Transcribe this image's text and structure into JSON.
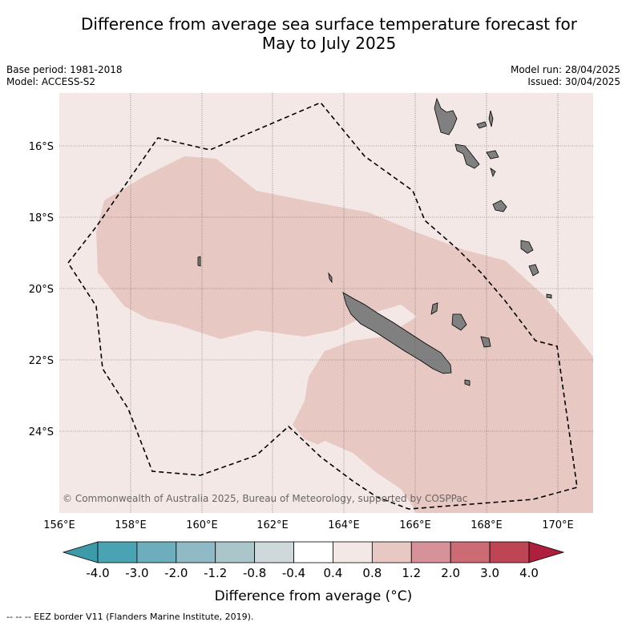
{
  "title_line1": "Difference from average sea surface temperature forecast for",
  "title_line2": "May to July 2025",
  "base_period": "Base period: 1981-2018",
  "model": "Model: ACCESS-S2",
  "model_run": "Model run: 28/04/2025",
  "issued": "Issued: 30/04/2025",
  "copyright": "© Commonwealth of Australia 2025, Bureau of Meteorology, supported by COSPPac",
  "lat_labels": [
    "16°S",
    "18°S",
    "20°S",
    "22°S",
    "24°S"
  ],
  "lon_labels": [
    "156°E",
    "158°E",
    "160°E",
    "162°E",
    "164°E",
    "166°E",
    "168°E",
    "170°E"
  ],
  "colorbar": {
    "ticks": [
      "-4.0",
      "-3.0",
      "-2.0",
      "-1.2",
      "-0.8",
      "-0.4",
      "0.4",
      "0.8",
      "1.2",
      "2.0",
      "3.0",
      "4.0"
    ],
    "colors": [
      "#3d9aa9",
      "#4aa3b3",
      "#6eadbc",
      "#8fb9c4",
      "#aac6cb",
      "#cfd8da",
      "#ffffff",
      "#f4e8e6",
      "#e8c8c3",
      "#d79299",
      "#cc6b74",
      "#be4555",
      "#ad1f3c"
    ],
    "label": "Difference from average (°C)"
  },
  "legend": "-- -- -- EEZ border V11 (Flanders Marine Institute, 2019).",
  "colors": {
    "anomaly_weak": "#f4e8e6",
    "anomaly_mid": "#e8c8c3",
    "land": "#808080"
  }
}
